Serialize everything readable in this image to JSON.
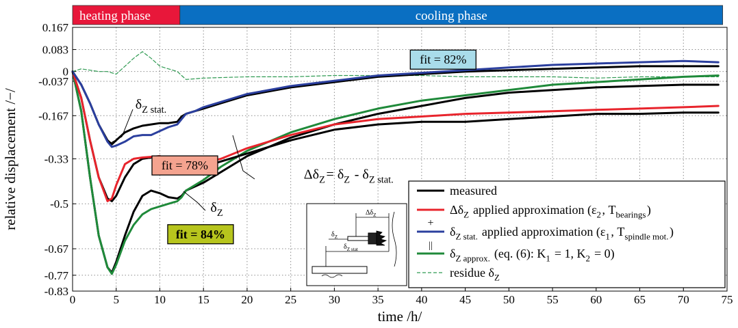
{
  "chart_data": {
    "type": "line",
    "xlabel": "time /h/",
    "ylabel": "relative displacement /−/",
    "xlim": [
      0,
      75
    ],
    "ylim": [
      -0.83,
      0.167
    ],
    "grid": true,
    "x_ticks": [
      "0",
      "5",
      "10",
      "15",
      "20",
      "25",
      "30",
      "35",
      "40",
      "45",
      "50",
      "55",
      "60",
      "65",
      "70",
      "75"
    ],
    "y_ticks": [
      {
        "value": 0.167,
        "label": "0.167"
      },
      {
        "value": 0.083,
        "label": "0.083"
      },
      {
        "value": 0,
        "label": "0"
      },
      {
        "value": -0.037,
        "label": "-0.037"
      },
      {
        "value": -0.167,
        "label": "-0.167"
      },
      {
        "value": -0.33,
        "label": "-0.33"
      },
      {
        "value": -0.5,
        "label": "-0.5"
      },
      {
        "value": -0.67,
        "label": "-0.67"
      },
      {
        "value": -0.77,
        "label": "-0.77"
      },
      {
        "value": -0.83,
        "label": "-0.83"
      }
    ],
    "phases": [
      {
        "label": "heating phase",
        "start": 0,
        "end": 12.3,
        "color": "#e8173a"
      },
      {
        "label": "cooling phase",
        "start": 12.3,
        "end": 74.5,
        "color": "#0a6fc2"
      }
    ],
    "series": [
      {
        "key": "dz_meas",
        "color": "#000000",
        "width": 3,
        "x": [
          0,
          1,
          2,
          3,
          4,
          4.5,
          5,
          6,
          7,
          8,
          9,
          10,
          11,
          12,
          12.5,
          13,
          15,
          17,
          20,
          25,
          30,
          35,
          40,
          45,
          50,
          55,
          60,
          65,
          70,
          74
        ],
        "y": [
          0,
          -0.15,
          -0.4,
          -0.62,
          -0.74,
          -0.76,
          -0.72,
          -0.62,
          -0.53,
          -0.47,
          -0.45,
          -0.46,
          -0.475,
          -0.48,
          -0.47,
          -0.45,
          -0.42,
          -0.38,
          -0.32,
          -0.25,
          -0.2,
          -0.16,
          -0.13,
          -0.1,
          -0.08,
          -0.07,
          -0.06,
          -0.055,
          -0.05,
          -0.05
        ]
      },
      {
        "key": "dz_approx",
        "color": "#1f8a3a",
        "width": 3,
        "x": [
          0,
          1,
          2,
          3,
          4,
          4.5,
          5,
          6,
          7,
          8,
          9,
          10,
          11,
          12,
          12.5,
          13,
          15,
          17,
          20,
          25,
          30,
          35,
          40,
          45,
          50,
          55,
          60,
          65,
          70,
          74
        ],
        "y": [
          0,
          -0.15,
          -0.4,
          -0.62,
          -0.74,
          -0.765,
          -0.73,
          -0.64,
          -0.58,
          -0.54,
          -0.52,
          -0.51,
          -0.5,
          -0.49,
          -0.475,
          -0.45,
          -0.41,
          -0.36,
          -0.3,
          -0.23,
          -0.18,
          -0.14,
          -0.11,
          -0.09,
          -0.07,
          -0.05,
          -0.04,
          -0.03,
          -0.02,
          -0.015
        ]
      },
      {
        "key": "ddz_meas",
        "color": "#000000",
        "width": 3,
        "x": [
          0,
          1,
          2,
          3,
          4,
          4.5,
          5,
          6,
          7,
          8,
          10,
          11,
          12,
          12.5,
          13,
          14,
          15,
          17,
          20,
          25,
          30,
          35,
          40,
          45,
          50,
          55,
          60,
          65,
          70,
          74
        ],
        "y": [
          0,
          -0.1,
          -0.26,
          -0.4,
          -0.48,
          -0.49,
          -0.47,
          -0.4,
          -0.35,
          -0.33,
          -0.32,
          -0.34,
          -0.355,
          -0.36,
          -0.37,
          -0.37,
          -0.36,
          -0.34,
          -0.31,
          -0.26,
          -0.22,
          -0.2,
          -0.19,
          -0.19,
          -0.18,
          -0.17,
          -0.16,
          -0.16,
          -0.155,
          -0.155
        ]
      },
      {
        "key": "ddz_approx",
        "color": "#e8242c",
        "width": 3,
        "x": [
          0,
          1,
          2,
          3,
          4,
          4.5,
          5,
          6,
          7,
          8,
          10,
          11,
          12,
          12.5,
          13,
          14,
          15,
          17,
          20,
          25,
          30,
          35,
          40,
          45,
          50,
          55,
          60,
          65,
          70,
          74
        ],
        "y": [
          0,
          -0.1,
          -0.26,
          -0.4,
          -0.49,
          -0.48,
          -0.43,
          -0.35,
          -0.33,
          -0.325,
          -0.32,
          -0.33,
          -0.34,
          -0.345,
          -0.35,
          -0.35,
          -0.345,
          -0.33,
          -0.29,
          -0.24,
          -0.2,
          -0.18,
          -0.17,
          -0.16,
          -0.155,
          -0.15,
          -0.145,
          -0.14,
          -0.135,
          -0.13
        ]
      },
      {
        "key": "dzs_meas",
        "color": "#000000",
        "width": 3,
        "x": [
          0,
          1,
          2,
          3,
          4,
          4.5,
          5,
          6,
          7,
          8,
          9,
          10,
          11,
          12,
          12.5,
          13,
          14,
          15,
          17,
          20,
          25,
          30,
          35,
          40,
          45,
          50,
          55,
          60,
          65,
          70,
          74
        ],
        "y": [
          0,
          -0.05,
          -0.12,
          -0.2,
          -0.26,
          -0.275,
          -0.26,
          -0.23,
          -0.215,
          -0.205,
          -0.2,
          -0.195,
          -0.195,
          -0.19,
          -0.17,
          -0.16,
          -0.15,
          -0.14,
          -0.12,
          -0.09,
          -0.06,
          -0.04,
          -0.02,
          -0.01,
          0,
          0.005,
          0.01,
          0.015,
          0.02,
          0.02,
          0.02
        ]
      },
      {
        "key": "dzs_approx",
        "color": "#2b3f9e",
        "width": 3,
        "x": [
          0,
          1,
          2,
          3,
          4,
          4.5,
          5,
          6,
          7,
          8,
          9,
          10,
          11,
          12,
          12.5,
          13,
          14,
          15,
          17,
          20,
          25,
          30,
          35,
          40,
          45,
          50,
          55,
          60,
          65,
          70,
          74
        ],
        "y": [
          0,
          -0.05,
          -0.12,
          -0.2,
          -0.265,
          -0.285,
          -0.28,
          -0.265,
          -0.245,
          -0.24,
          -0.24,
          -0.225,
          -0.21,
          -0.2,
          -0.18,
          -0.16,
          -0.15,
          -0.135,
          -0.115,
          -0.085,
          -0.055,
          -0.035,
          -0.015,
          -0.005,
          0.005,
          0.015,
          0.025,
          0.03,
          0.035,
          0.04,
          0.035
        ]
      },
      {
        "key": "residue",
        "color": "#2f9a52",
        "width": 1.2,
        "dashed": true,
        "x": [
          0,
          1,
          2,
          3,
          4,
          5,
          6,
          7,
          8,
          9,
          10,
          11,
          12,
          12.5,
          13,
          15,
          20,
          25,
          30,
          35,
          40,
          45,
          50,
          55,
          60,
          65,
          70,
          74
        ],
        "y": [
          0,
          0.01,
          0.005,
          0.0,
          0.0,
          -0.01,
          0.02,
          0.05,
          0.075,
          0.05,
          0.02,
          0.01,
          0.0,
          -0.015,
          -0.03,
          -0.025,
          -0.02,
          -0.02,
          -0.015,
          -0.015,
          -0.015,
          -0.02,
          -0.02,
          -0.02,
          -0.025,
          -0.02,
          -0.02,
          -0.02
        ]
      }
    ],
    "annotations": [
      {
        "key": "lab_dzs",
        "main": "δ",
        "sub": "Z stat.",
        "x": 7.2,
        "y": -0.14
      },
      {
        "key": "lab_ddz",
        "main": "Δδ",
        "sub": "Z",
        "after": "= δ",
        "sub2": "Z",
        "after2": " - δ",
        "sub3": "Z stat.",
        "x": 26.5,
        "y": -0.405
      },
      {
        "key": "lab_dz",
        "main": "δ",
        "sub": "Z",
        "x": 15.8,
        "y": -0.53
      }
    ],
    "fit_boxes": [
      {
        "key": "fit82",
        "label": "fit = 82%",
        "x": 38.7,
        "y": 0.045,
        "fill": "#a9dcea"
      },
      {
        "key": "fit78",
        "label": "fit = 78%",
        "x": 9.1,
        "y": -0.355,
        "fill": "#f4a38f"
      },
      {
        "key": "fit84",
        "label": "fit = 84%",
        "x": 10.9,
        "y": -0.615,
        "fill": "#b7c51d",
        "bold": true
      }
    ],
    "legend": {
      "placement": "bottom-right",
      "items": [
        {
          "key": "leg-measured",
          "color": "#000000",
          "width": 3,
          "text": "measured"
        },
        {
          "key": "leg-ddz",
          "color": "#e8242c",
          "width": 3,
          "main": "Δδ",
          "sub": "Z",
          "mid": "  applied approximation (ε",
          "sub2": "2",
          "mid2": ", T",
          "sub3": "bearings",
          "end": ")"
        },
        {
          "key": "leg-dzs",
          "color": "#2b3f9e",
          "width": 3,
          "main": "δ",
          "sub": "Z stat.",
          "mid": "  applied approximation (ε",
          "sub2": "1",
          "mid2": ", T",
          "sub3": "spindle mot.",
          "end": ")"
        },
        {
          "key": "leg-dza",
          "color": "#1f8a3a",
          "width": 3,
          "main": "δ",
          "sub": "Z approx.",
          "mid": "  (eq. (6): K",
          "sub2": "1",
          "mid2": " = 1, K",
          "sub3": "2",
          "end": " = 0)"
        },
        {
          "key": "leg-res",
          "color": "#2f9a52",
          "width": 1.2,
          "dashed": true,
          "main": "residue δ",
          "sub": "Z"
        }
      ],
      "plus": "+",
      "equals": "||"
    },
    "inset": {
      "label_top": "Δδ",
      "label_top_sub": "Z",
      "label_mid": "δ",
      "label_mid_sub": "Z",
      "label_bot": "δ",
      "label_bot_sub": "Z stat"
    }
  }
}
